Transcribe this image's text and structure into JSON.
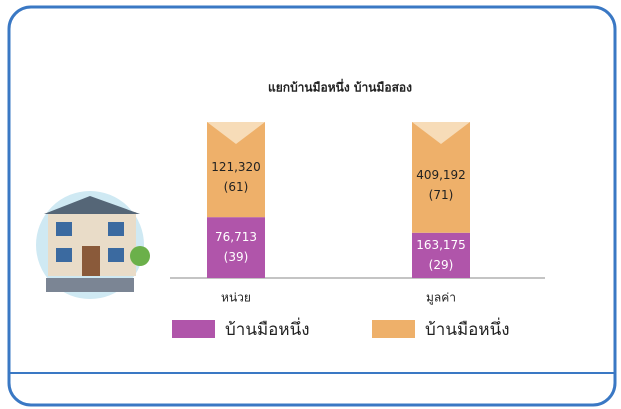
{
  "chart_data": {
    "type": "stacked-bar",
    "title": "แยกบ้านมือหนึ่ง บ้านมือสอง",
    "categories": [
      "หน่วย",
      "มูลค่า"
    ],
    "series": [
      {
        "name": "บ้านมือหนึ่ง",
        "color": "#b055aa",
        "values": [
          39,
          29
        ],
        "value_labels": [
          "(39)",
          "(29)"
        ],
        "amounts": [
          "76,713",
          "163,175"
        ]
      },
      {
        "name": "บ้านมือหนึ่ง",
        "color": "#eeb06a",
        "values": [
          61,
          71
        ],
        "value_labels": [
          "(61)",
          "(71)"
        ],
        "amounts": [
          "121,320",
          "409,192"
        ]
      }
    ]
  }
}
